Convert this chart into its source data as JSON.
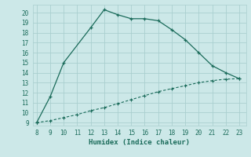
{
  "xlabel": "Humidex (Indice chaleur)",
  "background_color": "#cce8e8",
  "line_color": "#1a6b5a",
  "grid_color": "#aacfcf",
  "xlim": [
    8,
    23
  ],
  "ylim": [
    9,
    20
  ],
  "xticks": [
    8,
    9,
    10,
    11,
    12,
    13,
    14,
    15,
    16,
    17,
    18,
    19,
    20,
    21,
    22,
    23
  ],
  "yticks": [
    9,
    10,
    11,
    12,
    13,
    14,
    15,
    16,
    17,
    18,
    19,
    20
  ],
  "line1_x": [
    8,
    9,
    10,
    12,
    13,
    14,
    15,
    16,
    17,
    18,
    19,
    20,
    21,
    22,
    23
  ],
  "line1_y": [
    9.0,
    11.6,
    15.0,
    18.5,
    20.3,
    19.8,
    19.4,
    19.4,
    19.2,
    18.3,
    17.3,
    16.0,
    14.7,
    14.0,
    13.4
  ],
  "line2_x": [
    8,
    9,
    10,
    11,
    12,
    13,
    14,
    15,
    16,
    17,
    18,
    19,
    20,
    21,
    22,
    23
  ],
  "line2_y": [
    9.0,
    9.2,
    9.5,
    9.8,
    10.2,
    10.5,
    10.9,
    11.3,
    11.7,
    12.1,
    12.4,
    12.7,
    13.0,
    13.2,
    13.35,
    13.4
  ]
}
